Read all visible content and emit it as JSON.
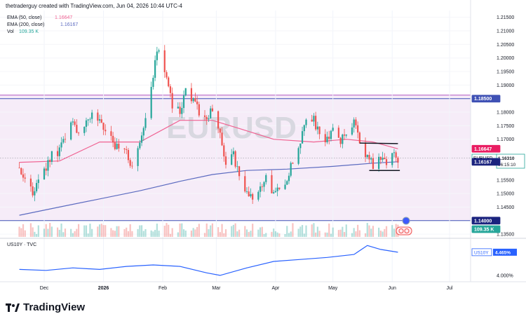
{
  "header": {
    "credit": "thetraderguy created with TradingView.com, Jun 04, 2026 10:44 UTC-4"
  },
  "legend": {
    "ema50_label": "EMA (50, close)",
    "ema50_value": "1.16647",
    "ema200_label": "EMA (200, close)",
    "ema200_value": "1.16167",
    "vol_label": "Vol",
    "vol_value": "109.35 K"
  },
  "watermark": "EURUSD",
  "price_badges": {
    "resistance": "1.18500",
    "ema50": "1.16647",
    "symbol": "EURUSD",
    "last_price": "1.16310",
    "countdown": "06:15:10",
    "ema200": "1.16167",
    "support": "1.14000",
    "volume": "109.35 K"
  },
  "sub_pane": {
    "label": "US10Y · TVC",
    "symbol_badge": "US10Y",
    "value_badge": "4.465%"
  },
  "brand": {
    "name": "TradingView"
  },
  "colors": {
    "up": "#26a69a",
    "down": "#ef5350",
    "ema50": "#f06292",
    "ema200": "#5c6bc0",
    "us10y": "#2962ff",
    "band_fill": "#f3e5f5",
    "band_line_top": "#ba68c8",
    "level_line": "#3f51b5"
  },
  "chart_data": [
    {
      "type": "candlestick",
      "title": "EURUSD",
      "x_ticks": [
        "Dec",
        "2026",
        "Feb",
        "Mar",
        "Apr",
        "May",
        "Jun",
        "Jul"
      ],
      "y_ticks": [
        "1.21500",
        "1.21000",
        "1.20500",
        "1.20000",
        "1.19500",
        "1.19000",
        "1.18000",
        "1.17500",
        "1.17000",
        "1.15500",
        "1.15000",
        "1.14500",
        "1.13500"
      ],
      "ylim": [
        1.134,
        1.2175
      ],
      "levels": [
        {
          "label": "1.18500",
          "value": 1.185
        },
        {
          "label": "1.14000",
          "value": 1.14
        }
      ],
      "shaded_band": [
        1.14,
        1.1863
      ],
      "trendlines": [
        {
          "from": [
            "May 15",
            1.1686
          ],
          "to": [
            "Jun 4",
            1.1684
          ]
        },
        {
          "from": [
            "May 20",
            1.1585
          ],
          "to": [
            "Jun 5",
            1.1585
          ]
        }
      ],
      "closes": [
        {
          "date": "Nov 18",
          "close": 1.1595
        },
        {
          "date": "Nov 21",
          "close": 1.154
        },
        {
          "date": "Nov 25",
          "close": 1.151
        },
        {
          "date": "Nov 28",
          "close": 1.1545
        },
        {
          "date": "Dec 2",
          "close": 1.159
        },
        {
          "date": "Dec 5",
          "close": 1.164
        },
        {
          "date": "Dec 9",
          "close": 1.166
        },
        {
          "date": "Dec 12",
          "close": 1.17
        },
        {
          "date": "Dec 16",
          "close": 1.176
        },
        {
          "date": "Dec 19",
          "close": 1.172
        },
        {
          "date": "Dec 23",
          "close": 1.177
        },
        {
          "date": "Dec 26",
          "close": 1.18
        },
        {
          "date": "Dec 30",
          "close": 1.176
        },
        {
          "date": "Jan 2",
          "close": 1.172
        },
        {
          "date": "Jan 6",
          "close": 1.169
        },
        {
          "date": "Jan 9",
          "close": 1.166
        },
        {
          "date": "Jan 13",
          "close": 1.165
        },
        {
          "date": "Jan 16",
          "close": 1.16
        },
        {
          "date": "Jan 20",
          "close": 1.168
        },
        {
          "date": "Jan 23",
          "close": 1.178
        },
        {
          "date": "Jan 26",
          "close": 1.188
        },
        {
          "date": "Jan 28",
          "close": 1.199
        },
        {
          "date": "Jan 30",
          "close": 1.203
        },
        {
          "date": "Feb 3",
          "close": 1.193
        },
        {
          "date": "Feb 6",
          "close": 1.182
        },
        {
          "date": "Feb 10",
          "close": 1.18
        },
        {
          "date": "Feb 13",
          "close": 1.188
        },
        {
          "date": "Feb 17",
          "close": 1.185
        },
        {
          "date": "Feb 20",
          "close": 1.18
        },
        {
          "date": "Feb 24",
          "close": 1.178
        },
        {
          "date": "Feb 27",
          "close": 1.181
        },
        {
          "date": "Mar 3",
          "close": 1.171
        },
        {
          "date": "Mar 6",
          "close": 1.162
        },
        {
          "date": "Mar 10",
          "close": 1.164
        },
        {
          "date": "Mar 13",
          "close": 1.156
        },
        {
          "date": "Mar 17",
          "close": 1.151
        },
        {
          "date": "Mar 20",
          "close": 1.147
        },
        {
          "date": "Mar 24",
          "close": 1.153
        },
        {
          "date": "Mar 27",
          "close": 1.156
        },
        {
          "date": "Mar 31",
          "close": 1.149
        },
        {
          "date": "Apr 3",
          "close": 1.152
        },
        {
          "date": "Apr 7",
          "close": 1.156
        },
        {
          "date": "Apr 10",
          "close": 1.162
        },
        {
          "date": "Apr 14",
          "close": 1.17
        },
        {
          "date": "Apr 17",
          "close": 1.179
        },
        {
          "date": "Apr 21",
          "close": 1.177
        },
        {
          "date": "Apr 24",
          "close": 1.172
        },
        {
          "date": "Apr 28",
          "close": 1.17
        },
        {
          "date": "May 1",
          "close": 1.173
        },
        {
          "date": "May 5",
          "close": 1.169
        },
        {
          "date": "May 8",
          "close": 1.173
        },
        {
          "date": "May 12",
          "close": 1.177
        },
        {
          "date": "May 15",
          "close": 1.169
        },
        {
          "date": "May 19",
          "close": 1.163
        },
        {
          "date": "May 22",
          "close": 1.1605
        },
        {
          "date": "May 26",
          "close": 1.163
        },
        {
          "date": "May 29",
          "close": 1.162
        },
        {
          "date": "Jun 1",
          "close": 1.165
        },
        {
          "date": "Jun 4",
          "close": 1.1631
        }
      ],
      "ema50": [
        {
          "date": "Nov 18",
          "value": 1.1615
        },
        {
          "date": "Dec 9",
          "value": 1.162
        },
        {
          "date": "Dec 30",
          "value": 1.169
        },
        {
          "date": "Jan 20",
          "value": 1.169
        },
        {
          "date": "Feb 10",
          "value": 1.177
        },
        {
          "date": "Feb 27",
          "value": 1.177
        },
        {
          "date": "Mar 13",
          "value": 1.174
        },
        {
          "date": "Mar 31",
          "value": 1.17
        },
        {
          "date": "Apr 21",
          "value": 1.169
        },
        {
          "date": "May 8",
          "value": 1.17
        },
        {
          "date": "May 22",
          "value": 1.169
        },
        {
          "date": "Jun 4",
          "value": 1.1665
        }
      ],
      "ema200": [
        {
          "date": "Nov 18",
          "value": 1.142
        },
        {
          "date": "Dec 9",
          "value": 1.145
        },
        {
          "date": "Dec 30",
          "value": 1.148
        },
        {
          "date": "Jan 20",
          "value": 1.151
        },
        {
          "date": "Feb 10",
          "value": 1.1545
        },
        {
          "date": "Feb 27",
          "value": 1.157
        },
        {
          "date": "Mar 17",
          "value": 1.1585
        },
        {
          "date": "Apr 7",
          "value": 1.159
        },
        {
          "date": "May 1",
          "value": 1.16
        },
        {
          "date": "May 22",
          "value": 1.1612
        },
        {
          "date": "Jun 4",
          "value": 1.1617
        }
      ]
    },
    {
      "type": "line",
      "title": "US10Y · TVC",
      "y_ticks": [
        "4.000%"
      ],
      "last_value": 4.465,
      "points": [
        {
          "date": "Nov 18",
          "value": 4.12
        },
        {
          "date": "Dec 2",
          "value": 4.1
        },
        {
          "date": "Dec 16",
          "value": 4.15
        },
        {
          "date": "Dec 30",
          "value": 4.12
        },
        {
          "date": "Jan 13",
          "value": 4.18
        },
        {
          "date": "Jan 27",
          "value": 4.21
        },
        {
          "date": "Feb 10",
          "value": 4.18
        },
        {
          "date": "Feb 24",
          "value": 4.05
        },
        {
          "date": "Mar 3",
          "value": 4.0
        },
        {
          "date": "Mar 17",
          "value": 4.15
        },
        {
          "date": "Mar 31",
          "value": 4.28
        },
        {
          "date": "Apr 14",
          "value": 4.32
        },
        {
          "date": "Apr 28",
          "value": 4.36
        },
        {
          "date": "May 12",
          "value": 4.42
        },
        {
          "date": "May 19",
          "value": 4.6
        },
        {
          "date": "May 26",
          "value": 4.52
        },
        {
          "date": "Jun 4",
          "value": 4.465
        }
      ]
    }
  ]
}
